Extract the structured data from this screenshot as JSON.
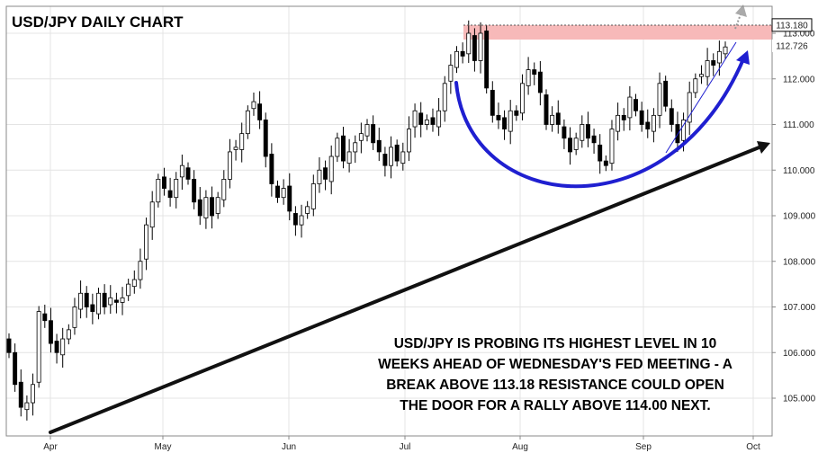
{
  "chart_data": {
    "type": "candlestick",
    "title": "USD/JPY DAILY CHART",
    "x_ticks": [
      "Apr",
      "May",
      "Jun",
      "Jul",
      "Aug",
      "Sep",
      "Oct"
    ],
    "y_ticks": [
      "113.000",
      "112.000",
      "111.000",
      "110.000",
      "109.000",
      "108.000",
      "107.000",
      "106.000",
      "105.000"
    ],
    "ylim": [
      104.2,
      113.5
    ],
    "grid": true,
    "price_labels": {
      "resistance": "113.180",
      "last": "112.726"
    },
    "resistance_level": 113.18,
    "last_price": 112.726,
    "closes": [
      106.0,
      105.3,
      104.8,
      104.9,
      105.3,
      106.9,
      106.7,
      106.2,
      106.0,
      106.3,
      106.5,
      107.0,
      107.3,
      107.0,
      106.9,
      107.3,
      107.0,
      107.2,
      107.1,
      107.2,
      107.5,
      107.6,
      108.0,
      108.8,
      109.3,
      109.8,
      109.6,
      109.4,
      109.8,
      110.1,
      109.8,
      109.3,
      109.0,
      109.4,
      109.0,
      109.4,
      109.8,
      110.4,
      110.5,
      110.8,
      111.3,
      111.5,
      111.1,
      110.3,
      109.7,
      109.4,
      109.6,
      109.1,
      108.8,
      109.0,
      109.2,
      109.7,
      110.0,
      109.8,
      110.3,
      110.7,
      110.2,
      110.4,
      110.6,
      110.8,
      111.0,
      110.6,
      110.4,
      110.1,
      110.5,
      110.2,
      110.4,
      110.9,
      111.3,
      111.0,
      111.1,
      111.0,
      111.3,
      111.9,
      112.3,
      112.6,
      112.5,
      113.0,
      112.4,
      113.0,
      111.8,
      111.2,
      111.1,
      110.9,
      111.3,
      111.2,
      111.9,
      112.2,
      112.1,
      111.7,
      111.0,
      111.2,
      111.0,
      110.7,
      110.4,
      110.7,
      111.0,
      110.7,
      110.6,
      110.2,
      110.1,
      110.9,
      111.2,
      111.1,
      111.6,
      111.3,
      111.0,
      110.9,
      111.2,
      111.9,
      111.4,
      111.0,
      110.6,
      111.1,
      111.7,
      112.0,
      112.1,
      112.4,
      112.3,
      112.6,
      112.7
    ]
  },
  "annotation_lines": [
    "USD/JPY IS PROBING ITS HIGHEST LEVEL IN 10",
    "WEEKS AHEAD OF WEDNESDAY'S FED MEETING - A",
    "BREAK ABOVE 113.18 RESISTANCE COULD OPEN",
    "THE DOOR FOR A RALLY ABOVE 114.00 NEXT."
  ],
  "colors": {
    "resistance_band": "#f7b9b9",
    "arc": "#1f1fd0",
    "trendline": "#111111",
    "bull_candle": "#ffffff",
    "bear_candle": "#000000",
    "grid": "#e4e4e4"
  }
}
